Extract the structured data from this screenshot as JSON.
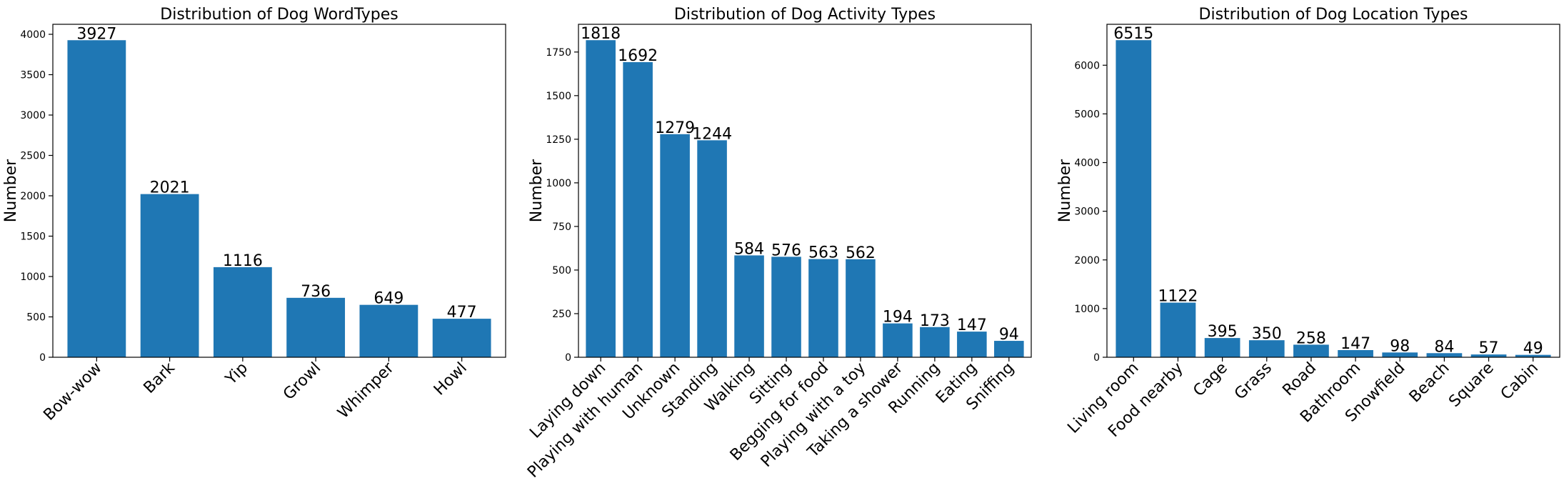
{
  "chart_data": [
    {
      "type": "bar",
      "title": "Distribution of Dog WordTypes",
      "ylabel": "Number",
      "xlabel": "",
      "categories": [
        "Bow-wow",
        "Bark",
        "Yip",
        "Growl",
        "Whimper",
        "Howl"
      ],
      "values": [
        3927,
        2021,
        1116,
        736,
        649,
        477
      ],
      "ylim": [
        0,
        4124
      ],
      "yticks": [
        0,
        500,
        1000,
        1500,
        2000,
        2500,
        3000,
        3500,
        4000
      ],
      "bar_color": "#1f77b4",
      "grid": false
    },
    {
      "type": "bar",
      "title": "Distribution of Dog Activity Types",
      "ylabel": "Number",
      "xlabel": "",
      "categories": [
        "Laying down",
        "Playing with human",
        "Unknown",
        "Standing",
        "Walking",
        "Sitting",
        "Begging for food",
        "Playing with a toy",
        "Taking a shower",
        "Running",
        "Eating",
        "Sniffing"
      ],
      "values": [
        1818,
        1692,
        1279,
        1244,
        584,
        576,
        563,
        562,
        194,
        173,
        147,
        94
      ],
      "ylim": [
        0,
        1909
      ],
      "yticks": [
        0,
        250,
        500,
        750,
        1000,
        1250,
        1500,
        1750
      ],
      "bar_color": "#1f77b4",
      "grid": false
    },
    {
      "type": "bar",
      "title": "Distribution of Dog Location Types",
      "ylabel": "Number",
      "xlabel": "",
      "categories": [
        "Living room",
        "Food nearby",
        "Cage",
        "Grass",
        "Road",
        "Bathroom",
        "Snowfield",
        "Beach",
        "Square",
        "Cabin"
      ],
      "values": [
        6515,
        1122,
        395,
        350,
        258,
        147,
        98,
        84,
        57,
        49
      ],
      "ylim": [
        0,
        6841
      ],
      "yticks": [
        0,
        1000,
        2000,
        3000,
        4000,
        5000,
        6000
      ],
      "bar_color": "#1f77b4",
      "grid": false
    }
  ]
}
